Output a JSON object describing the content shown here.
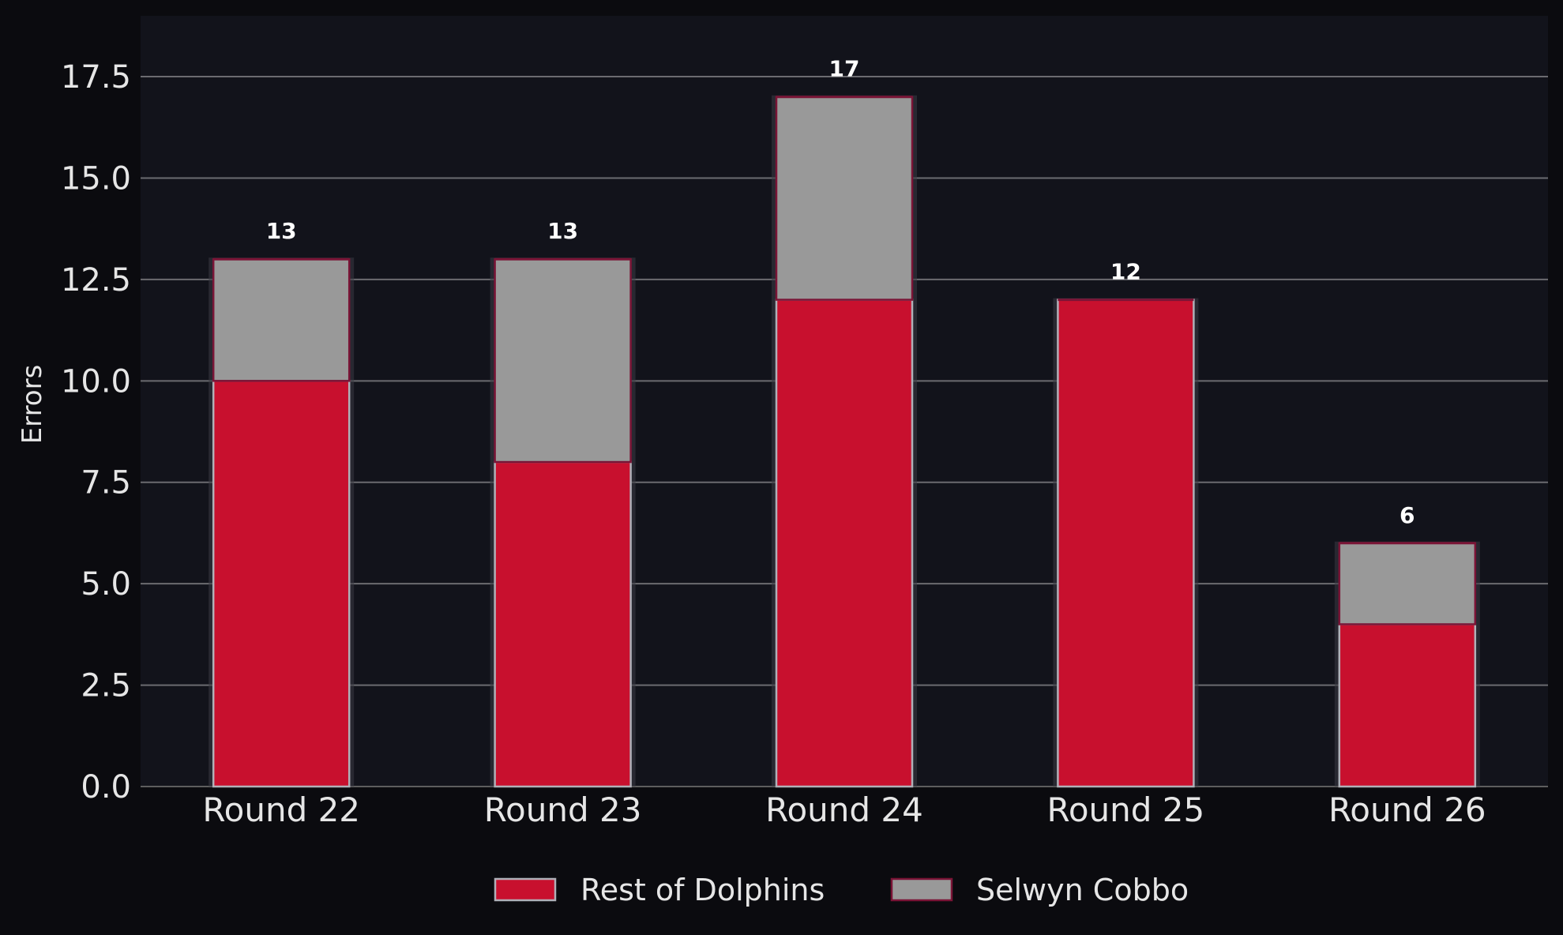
{
  "chart_data": {
    "type": "bar",
    "stacked": true,
    "categories": [
      "Round 22",
      "Round 23",
      "Round 24",
      "Round 25",
      "Round 26"
    ],
    "series": [
      {
        "name": "Rest of Dolphins",
        "values": [
          10,
          8,
          12,
          12,
          4
        ],
        "color": "#c8102e"
      },
      {
        "name": "Selwyn Cobbo",
        "values": [
          3,
          5,
          5,
          0,
          2
        ],
        "color": "#999999"
      }
    ],
    "totals": [
      13,
      13,
      17,
      12,
      6
    ],
    "ylabel": "Errors",
    "xlabel": "",
    "ylim": [
      0,
      19
    ],
    "yticks": [
      "0.0",
      "2.5",
      "5.0",
      "7.5",
      "10.0",
      "12.5",
      "15.0",
      "17.5"
    ],
    "grid": "horizontal",
    "legend_position": "bottom-center",
    "colors": {
      "background": "#0b0b0f",
      "plot_background": "#12131b",
      "grid": "#6b6b70",
      "bar_edge": "#7a1436"
    }
  }
}
